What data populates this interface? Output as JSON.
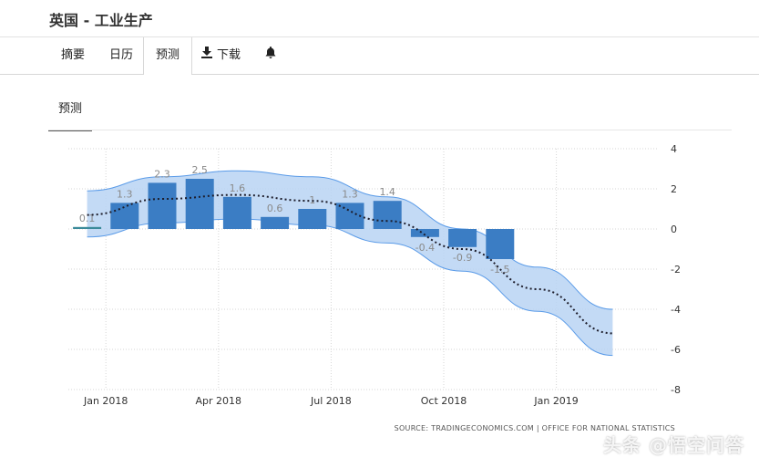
{
  "page": {
    "title": "英国 - 工业生产"
  },
  "tabs": [
    {
      "label": "摘要",
      "icon": ""
    },
    {
      "label": "日历",
      "icon": ""
    },
    {
      "label": "预测",
      "icon": "",
      "active": true
    },
    {
      "label": "下载",
      "icon": "download-icon"
    },
    {
      "label": "",
      "icon": "bell-icon"
    }
  ],
  "subtab": {
    "label": "预测"
  },
  "colors": {
    "bar": "#3b7dc4",
    "band": "#b8d3f3",
    "band_edge": "#5a9be8",
    "trend": "#1d1d2b",
    "first_bar": "#3a8a9a"
  },
  "chart_data": {
    "type": "bar",
    "categories": [
      "2017-12",
      "2018-01",
      "2018-02",
      "2018-03",
      "2018-04",
      "2018-05",
      "2018-06",
      "2018-07",
      "2018-08",
      "2018-09",
      "2018-10",
      "2018-11"
    ],
    "values": [
      0.1,
      1.3,
      2.3,
      2.5,
      1.6,
      0.6,
      1,
      1.3,
      1.4,
      -0.4,
      -0.9,
      -1.5
    ],
    "value_labels": [
      "0.1",
      "1.3",
      "2.3",
      "2.5",
      "1.6",
      "0.6",
      "1",
      "1.3",
      "1.4",
      "-0.4",
      "-0.9",
      "-1.5"
    ],
    "x_tick_labels": [
      "Jan 2018",
      "Apr 2018",
      "Jul 2018",
      "Oct 2018",
      "Jan 2019"
    ],
    "y_ticks": [
      "4",
      "2",
      "0",
      "-2",
      "-4",
      "-6",
      "-8"
    ],
    "ylim": [
      -8,
      4
    ],
    "trend": {
      "x": [
        "2017-12",
        "2018-02",
        "2018-04",
        "2018-06",
        "2018-08",
        "2018-10",
        "2018-12",
        "2019-02"
      ],
      "y": [
        0.7,
        1.5,
        1.7,
        1.4,
        0.4,
        -1.0,
        -3.0,
        -5.2
      ]
    },
    "band": {
      "x": [
        "2017-12",
        "2018-02",
        "2018-04",
        "2018-06",
        "2018-08",
        "2018-10",
        "2018-12",
        "2019-02"
      ],
      "upper": [
        1.9,
        2.6,
        2.9,
        2.6,
        1.6,
        0.0,
        -1.9,
        -4.0
      ],
      "lower": [
        -0.4,
        0.3,
        0.5,
        0.2,
        -0.7,
        -2.1,
        -4.1,
        -6.3
      ]
    },
    "grid": true,
    "source": "SOURCE: TRADINGECONOMICS.COM  |  OFFICE FOR NATIONAL STATISTICS"
  },
  "watermark": "头条 @悟空问答"
}
